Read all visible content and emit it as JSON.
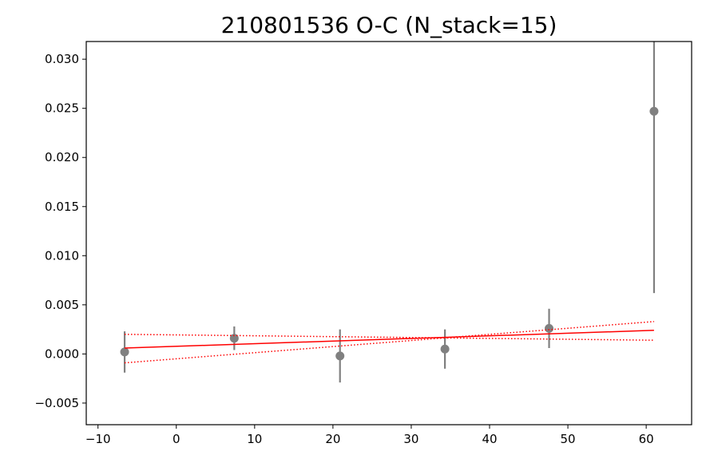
{
  "chart_data": {
    "type": "scatter",
    "title": "210801536 O-C (N_stack=15)",
    "xlabel": "",
    "ylabel": "",
    "xlim": [
      -11.5,
      65.8
    ],
    "ylim": [
      -0.0072,
      0.0318
    ],
    "xticks": [
      -10,
      0,
      10,
      20,
      30,
      40,
      50,
      60
    ],
    "yticks": [
      -0.005,
      0.0,
      0.005,
      0.01,
      0.015,
      0.02,
      0.025,
      0.03
    ],
    "xtick_labels": [
      "−10",
      "0",
      "10",
      "20",
      "30",
      "40",
      "50",
      "60"
    ],
    "ytick_labels": [
      "−0.005",
      "0.000",
      "0.005",
      "0.010",
      "0.015",
      "0.020",
      "0.025",
      "0.030"
    ],
    "grid": false,
    "series": [
      {
        "kind": "errorbar",
        "color": "#808080",
        "x": [
          -6.6,
          7.4,
          20.9,
          34.3,
          47.6,
          61.0
        ],
        "y": [
          0.0002,
          0.0016,
          -0.0002,
          0.0005,
          0.0026,
          0.0247
        ],
        "yerr": [
          0.0021,
          0.0012,
          0.0027,
          0.002,
          0.002,
          0.0185
        ]
      },
      {
        "kind": "line",
        "color": "#ff0000",
        "style": "solid",
        "x": [
          -6.6,
          61.0
        ],
        "y": [
          0.0006,
          0.0024
        ]
      },
      {
        "kind": "line",
        "color": "#ff0000",
        "style": "dotted",
        "x": [
          -6.6,
          61.0
        ],
        "y": [
          -0.0009,
          0.0033
        ]
      },
      {
        "kind": "line",
        "color": "#ff0000",
        "style": "dotted",
        "x": [
          -6.6,
          61.0
        ],
        "y": [
          0.002,
          0.0014
        ]
      }
    ]
  }
}
